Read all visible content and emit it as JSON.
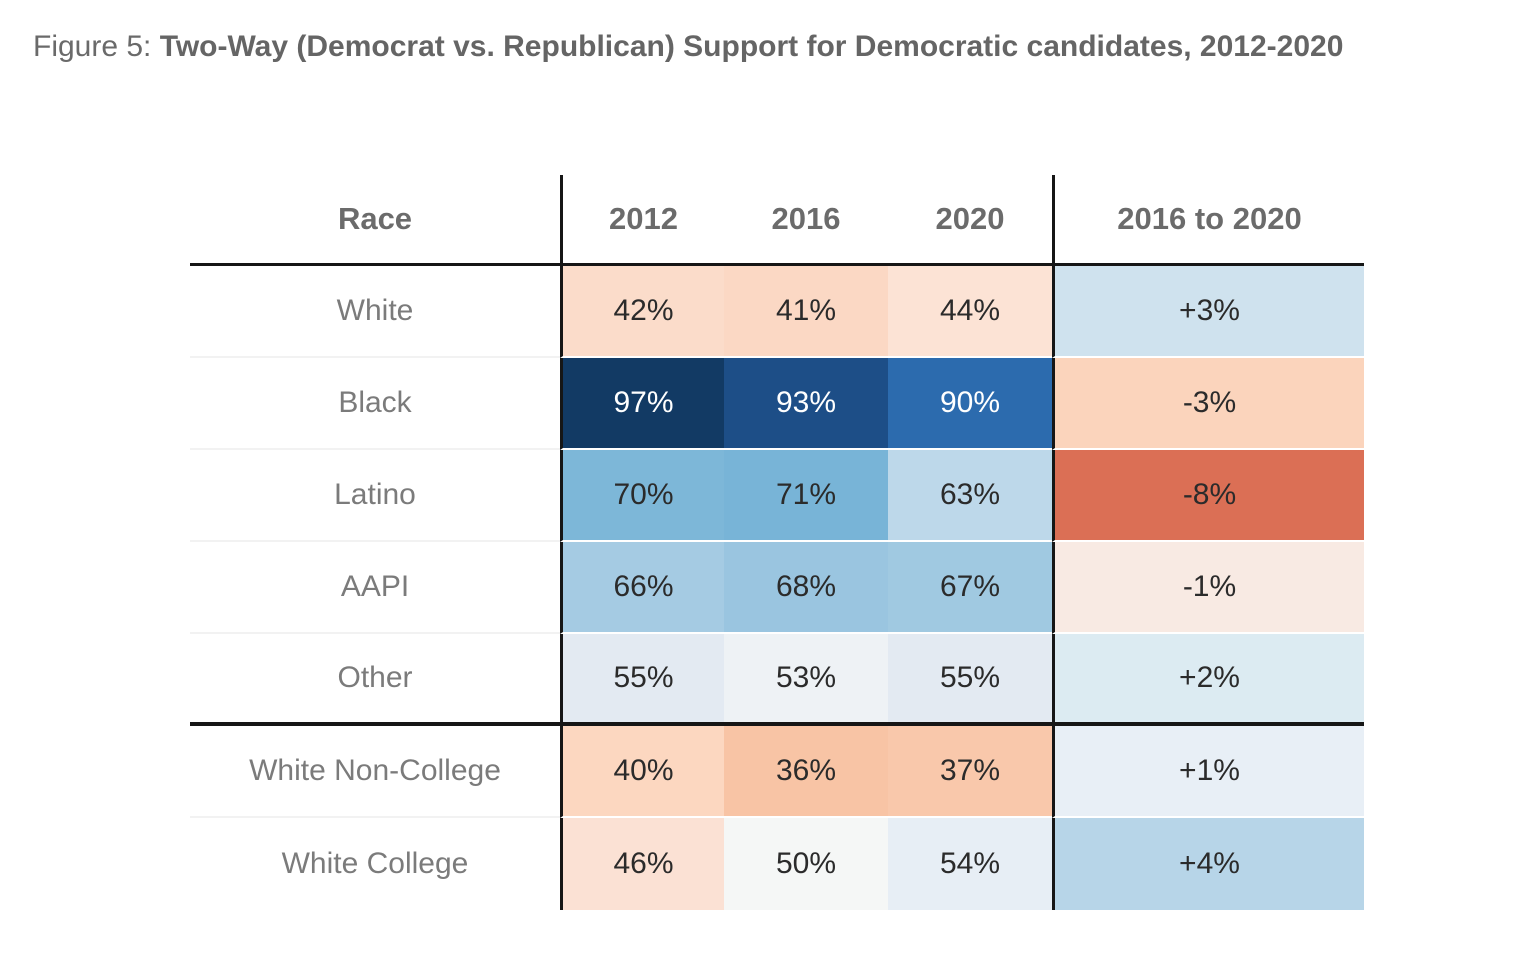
{
  "figure": {
    "prefix": "Figure 5: ",
    "title": "Two-Way (Democrat vs. Republican) Support for Democratic candidates, 2012-2020"
  },
  "chart_data": {
    "type": "heatmap",
    "title": "Two-Way (Democrat vs. Republican) Support for Democratic candidates, 2012-2020",
    "columns": [
      "Race",
      "2012",
      "2016",
      "2020",
      "2016 to 2020"
    ],
    "value_unit": "percent",
    "palette": {
      "strong_blue": "#2c6bae",
      "dark_navy": "#123a64",
      "strong_red": "#db6f55",
      "text_dark": "#2b2b2b",
      "text_light": "#ffffff"
    },
    "rows": [
      {
        "label": "White",
        "section_end": false,
        "values": {
          "y2012": 42,
          "y2016": 41,
          "y2020": 44,
          "change": 3
        },
        "cells": [
          {
            "text": "42%",
            "bg": "#fbdcca",
            "fg": "#2b2b2b"
          },
          {
            "text": "41%",
            "bg": "#fbd8c4",
            "fg": "#2b2b2b"
          },
          {
            "text": "44%",
            "bg": "#fce3d5",
            "fg": "#2b2b2b"
          },
          {
            "text": "+3%",
            "bg": "#cfe2ee",
            "fg": "#2b2b2b"
          }
        ]
      },
      {
        "label": "Black",
        "section_end": false,
        "values": {
          "y2012": 97,
          "y2016": 93,
          "y2020": 90,
          "change": -3
        },
        "cells": [
          {
            "text": "97%",
            "bg": "#123a64",
            "fg": "#ffffff"
          },
          {
            "text": "93%",
            "bg": "#1d4e87",
            "fg": "#ffffff"
          },
          {
            "text": "90%",
            "bg": "#2c6bae",
            "fg": "#ffffff"
          },
          {
            "text": "-3%",
            "bg": "#fbd4bc",
            "fg": "#2b2b2b"
          }
        ]
      },
      {
        "label": "Latino",
        "section_end": false,
        "values": {
          "y2012": 70,
          "y2016": 71,
          "y2020": 63,
          "change": -8
        },
        "cells": [
          {
            "text": "70%",
            "bg": "#7db7d8",
            "fg": "#2b2b2b"
          },
          {
            "text": "71%",
            "bg": "#78b4d7",
            "fg": "#2b2b2b"
          },
          {
            "text": "63%",
            "bg": "#bdd8ea",
            "fg": "#2b2b2b"
          },
          {
            "text": "-8%",
            "bg": "#db6f55",
            "fg": "#2b2b2b"
          }
        ]
      },
      {
        "label": "AAPI",
        "section_end": false,
        "values": {
          "y2012": 66,
          "y2016": 68,
          "y2020": 67,
          "change": -1
        },
        "cells": [
          {
            "text": "66%",
            "bg": "#a5cbe3",
            "fg": "#2b2b2b"
          },
          {
            "text": "68%",
            "bg": "#9ac5e0",
            "fg": "#2b2b2b"
          },
          {
            "text": "67%",
            "bg": "#a0c9e1",
            "fg": "#2b2b2b"
          },
          {
            "text": "-1%",
            "bg": "#f8eae3",
            "fg": "#2b2b2b"
          }
        ]
      },
      {
        "label": "Other",
        "section_end": true,
        "values": {
          "y2012": 55,
          "y2016": 53,
          "y2020": 55,
          "change": 2
        },
        "cells": [
          {
            "text": "55%",
            "bg": "#e3eaf2",
            "fg": "#2b2b2b"
          },
          {
            "text": "53%",
            "bg": "#eef2f5",
            "fg": "#2b2b2b"
          },
          {
            "text": "55%",
            "bg": "#e3eaf2",
            "fg": "#2b2b2b"
          },
          {
            "text": "+2%",
            "bg": "#dcebf2",
            "fg": "#2b2b2b"
          }
        ]
      },
      {
        "label": "White Non-College",
        "section_end": false,
        "values": {
          "y2012": 40,
          "y2016": 36,
          "y2020": 37,
          "change": 1
        },
        "cells": [
          {
            "text": "40%",
            "bg": "#fcd7c0",
            "fg": "#2b2b2b"
          },
          {
            "text": "36%",
            "bg": "#f8c4a5",
            "fg": "#2b2b2b"
          },
          {
            "text": "37%",
            "bg": "#f9c8ab",
            "fg": "#2b2b2b"
          },
          {
            "text": "+1%",
            "bg": "#e8eff6",
            "fg": "#2b2b2b"
          }
        ]
      },
      {
        "label": "White College",
        "section_end": false,
        "values": {
          "y2012": 46,
          "y2016": 50,
          "y2020": 54,
          "change": 4
        },
        "cells": [
          {
            "text": "46%",
            "bg": "#fbe1d4",
            "fg": "#2b2b2b"
          },
          {
            "text": "50%",
            "bg": "#f5f7f6",
            "fg": "#2b2b2b"
          },
          {
            "text": "54%",
            "bg": "#e7eef5",
            "fg": "#2b2b2b"
          },
          {
            "text": "+4%",
            "bg": "#b7d5e8",
            "fg": "#2b2b2b"
          }
        ]
      }
    ]
  }
}
